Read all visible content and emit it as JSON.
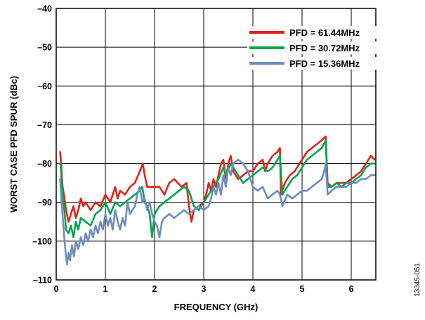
{
  "chart_data": {
    "type": "line",
    "title": "",
    "xlabel": "FREQUENCY (GHz)",
    "ylabel": "WORST CASE PFD SPUR (dBc)",
    "xlim": [
      0,
      6.5
    ],
    "ylim": [
      -110,
      -40
    ],
    "x_ticks": [
      "0",
      "1",
      "2",
      "3",
      "4",
      "5",
      "6"
    ],
    "x_tick_values": [
      0,
      1,
      2,
      3,
      4,
      5,
      6
    ],
    "y_ticks": [
      "–40",
      "–50",
      "–60",
      "–70",
      "–80",
      "–90",
      "–100",
      "–110"
    ],
    "y_tick_values": [
      -40,
      -50,
      -60,
      -70,
      -80,
      -90,
      -100,
      -110
    ],
    "grid": true,
    "legend_position": "top-right",
    "figure_id": "13345-051",
    "series": [
      {
        "name": "PFD = 61.44MHz",
        "color": "#e2231a",
        "points": [
          [
            0.08,
            -77
          ],
          [
            0.1,
            -80
          ],
          [
            0.13,
            -86
          ],
          [
            0.17,
            -89
          ],
          [
            0.2,
            -92
          ],
          [
            0.25,
            -95
          ],
          [
            0.3,
            -93
          ],
          [
            0.35,
            -91
          ],
          [
            0.4,
            -94
          ],
          [
            0.45,
            -92
          ],
          [
            0.5,
            -89
          ],
          [
            0.55,
            -91
          ],
          [
            0.6,
            -90
          ],
          [
            0.7,
            -92
          ],
          [
            0.8,
            -90
          ],
          [
            0.9,
            -91
          ],
          [
            1.0,
            -88
          ],
          [
            1.1,
            -90
          ],
          [
            1.15,
            -88
          ],
          [
            1.2,
            -86
          ],
          [
            1.25,
            -89
          ],
          [
            1.3,
            -87
          ],
          [
            1.4,
            -88
          ],
          [
            1.5,
            -86
          ],
          [
            1.6,
            -85
          ],
          [
            1.7,
            -82
          ],
          [
            1.76,
            -80
          ],
          [
            1.8,
            -83
          ],
          [
            1.85,
            -86
          ],
          [
            1.95,
            -86
          ],
          [
            2.1,
            -86
          ],
          [
            2.2,
            -88
          ],
          [
            2.3,
            -85
          ],
          [
            2.4,
            -84
          ],
          [
            2.55,
            -86
          ],
          [
            2.65,
            -85
          ],
          [
            2.7,
            -91
          ],
          [
            2.75,
            -95
          ],
          [
            2.8,
            -92
          ],
          [
            2.9,
            -91
          ],
          [
            3.0,
            -90
          ],
          [
            3.05,
            -88
          ],
          [
            3.1,
            -85
          ],
          [
            3.15,
            -87
          ],
          [
            3.2,
            -84
          ],
          [
            3.25,
            -86
          ],
          [
            3.35,
            -80
          ],
          [
            3.4,
            -79
          ],
          [
            3.45,
            -84
          ],
          [
            3.5,
            -80
          ],
          [
            3.55,
            -78
          ],
          [
            3.6,
            -82
          ],
          [
            3.7,
            -84
          ],
          [
            3.8,
            -83
          ],
          [
            3.9,
            -82
          ],
          [
            4.0,
            -82
          ],
          [
            4.1,
            -80
          ],
          [
            4.2,
            -79
          ],
          [
            4.25,
            -82
          ],
          [
            4.3,
            -80
          ],
          [
            4.4,
            -78
          ],
          [
            4.5,
            -77
          ],
          [
            4.55,
            -76
          ],
          [
            4.57,
            -88
          ],
          [
            4.65,
            -85
          ],
          [
            4.75,
            -83
          ],
          [
            4.85,
            -82
          ],
          [
            5.0,
            -79
          ],
          [
            5.1,
            -77
          ],
          [
            5.2,
            -76
          ],
          [
            5.3,
            -75
          ],
          [
            5.4,
            -74
          ],
          [
            5.48,
            -73
          ],
          [
            5.52,
            -85
          ],
          [
            5.6,
            -86
          ],
          [
            5.7,
            -85
          ],
          [
            5.8,
            -85
          ],
          [
            5.9,
            -85
          ],
          [
            6.0,
            -84
          ],
          [
            6.1,
            -83
          ],
          [
            6.2,
            -82
          ],
          [
            6.3,
            -80
          ],
          [
            6.4,
            -78
          ],
          [
            6.48,
            -79
          ]
        ]
      },
      {
        "name": "PFD = 30.72MHz",
        "color": "#00a550",
        "points": [
          [
            0.09,
            -80
          ],
          [
            0.12,
            -86
          ],
          [
            0.15,
            -90
          ],
          [
            0.18,
            -94
          ],
          [
            0.2,
            -97
          ],
          [
            0.25,
            -98
          ],
          [
            0.3,
            -96
          ],
          [
            0.35,
            -99
          ],
          [
            0.4,
            -95
          ],
          [
            0.45,
            -97
          ],
          [
            0.5,
            -94
          ],
          [
            0.6,
            -95
          ],
          [
            0.7,
            -96
          ],
          [
            0.8,
            -93
          ],
          [
            0.9,
            -92
          ],
          [
            1.0,
            -90
          ],
          [
            1.1,
            -93
          ],
          [
            1.2,
            -90
          ],
          [
            1.3,
            -91
          ],
          [
            1.4,
            -90
          ],
          [
            1.5,
            -89
          ],
          [
            1.6,
            -88
          ],
          [
            1.7,
            -87
          ],
          [
            1.75,
            -86
          ],
          [
            1.8,
            -90
          ],
          [
            1.85,
            -91
          ],
          [
            1.9,
            -93
          ],
          [
            1.95,
            -99
          ],
          [
            2.0,
            -93
          ],
          [
            2.1,
            -91
          ],
          [
            2.2,
            -90
          ],
          [
            2.3,
            -89
          ],
          [
            2.4,
            -88
          ],
          [
            2.5,
            -87
          ],
          [
            2.6,
            -86
          ],
          [
            2.7,
            -87
          ],
          [
            2.8,
            -91
          ],
          [
            2.9,
            -92
          ],
          [
            3.0,
            -90
          ],
          [
            3.1,
            -88
          ],
          [
            3.2,
            -86
          ],
          [
            3.3,
            -84
          ],
          [
            3.4,
            -81
          ],
          [
            3.45,
            -83
          ],
          [
            3.55,
            -80
          ],
          [
            3.6,
            -81
          ],
          [
            3.7,
            -83
          ],
          [
            3.8,
            -85
          ],
          [
            3.9,
            -84
          ],
          [
            4.0,
            -83
          ],
          [
            4.1,
            -82
          ],
          [
            4.2,
            -81
          ],
          [
            4.3,
            -82
          ],
          [
            4.4,
            -81
          ],
          [
            4.5,
            -79
          ],
          [
            4.55,
            -78
          ],
          [
            4.6,
            -88
          ],
          [
            4.7,
            -86
          ],
          [
            4.8,
            -84
          ],
          [
            4.9,
            -83
          ],
          [
            5.0,
            -81
          ],
          [
            5.1,
            -79
          ],
          [
            5.2,
            -78
          ],
          [
            5.3,
            -77
          ],
          [
            5.4,
            -76
          ],
          [
            5.48,
            -74
          ],
          [
            5.52,
            -86
          ],
          [
            5.6,
            -86
          ],
          [
            5.7,
            -85
          ],
          [
            5.8,
            -86
          ],
          [
            5.9,
            -85
          ],
          [
            6.0,
            -85
          ],
          [
            6.1,
            -84
          ],
          [
            6.2,
            -83
          ],
          [
            6.3,
            -81
          ],
          [
            6.4,
            -80
          ],
          [
            6.48,
            -80
          ]
        ]
      },
      {
        "name": "PFD = 15.36MHz",
        "color": "#6e8cbf",
        "points": [
          [
            0.08,
            -84
          ],
          [
            0.11,
            -90
          ],
          [
            0.14,
            -95
          ],
          [
            0.17,
            -100
          ],
          [
            0.2,
            -104
          ],
          [
            0.22,
            -106
          ],
          [
            0.25,
            -103
          ],
          [
            0.28,
            -105
          ],
          [
            0.32,
            -101
          ],
          [
            0.36,
            -104
          ],
          [
            0.4,
            -100
          ],
          [
            0.45,
            -102
          ],
          [
            0.5,
            -99
          ],
          [
            0.55,
            -101
          ],
          [
            0.6,
            -98
          ],
          [
            0.65,
            -100
          ],
          [
            0.7,
            -97
          ],
          [
            0.75,
            -99
          ],
          [
            0.8,
            -96
          ],
          [
            0.85,
            -98
          ],
          [
            0.9,
            -95
          ],
          [
            0.95,
            -97
          ],
          [
            1.0,
            -93
          ],
          [
            1.05,
            -96
          ],
          [
            1.1,
            -94
          ],
          [
            1.15,
            -97
          ],
          [
            1.2,
            -92
          ],
          [
            1.25,
            -95
          ],
          [
            1.3,
            -97
          ],
          [
            1.35,
            -94
          ],
          [
            1.4,
            -96
          ],
          [
            1.45,
            -90
          ],
          [
            1.5,
            -93
          ],
          [
            1.55,
            -92
          ],
          [
            1.6,
            -91
          ],
          [
            1.65,
            -88
          ],
          [
            1.7,
            -86
          ],
          [
            1.75,
            -90
          ],
          [
            1.8,
            -89
          ],
          [
            1.85,
            -92
          ],
          [
            1.9,
            -90
          ],
          [
            1.95,
            -93
          ],
          [
            2.0,
            -95
          ],
          [
            2.05,
            -96
          ],
          [
            2.1,
            -99
          ],
          [
            2.15,
            -95
          ],
          [
            2.2,
            -94
          ],
          [
            2.3,
            -93
          ],
          [
            2.4,
            -94
          ],
          [
            2.5,
            -93
          ],
          [
            2.6,
            -92
          ],
          [
            2.7,
            -93
          ],
          [
            2.8,
            -92
          ],
          [
            2.9,
            -91
          ],
          [
            3.0,
            -92
          ],
          [
            3.1,
            -91
          ],
          [
            3.15,
            -89
          ],
          [
            3.2,
            -86
          ],
          [
            3.25,
            -88
          ],
          [
            3.3,
            -85
          ],
          [
            3.35,
            -88
          ],
          [
            3.4,
            -83
          ],
          [
            3.45,
            -86
          ],
          [
            3.5,
            -81
          ],
          [
            3.55,
            -83
          ],
          [
            3.6,
            -80
          ],
          [
            3.7,
            -79
          ],
          [
            3.8,
            -80
          ],
          [
            3.9,
            -82
          ],
          [
            4.0,
            -86
          ],
          [
            4.1,
            -87
          ],
          [
            4.2,
            -86
          ],
          [
            4.3,
            -89
          ],
          [
            4.4,
            -88
          ],
          [
            4.5,
            -87
          ],
          [
            4.55,
            -88
          ],
          [
            4.6,
            -91
          ],
          [
            4.7,
            -88
          ],
          [
            4.8,
            -89
          ],
          [
            4.9,
            -88
          ],
          [
            5.0,
            -87
          ],
          [
            5.1,
            -87
          ],
          [
            5.2,
            -86
          ],
          [
            5.3,
            -85
          ],
          [
            5.4,
            -84
          ],
          [
            5.45,
            -82
          ],
          [
            5.48,
            -80
          ],
          [
            5.52,
            -88
          ],
          [
            5.6,
            -87
          ],
          [
            5.7,
            -86
          ],
          [
            5.8,
            -86
          ],
          [
            5.9,
            -86
          ],
          [
            6.0,
            -85
          ],
          [
            6.1,
            -85
          ],
          [
            6.2,
            -84
          ],
          [
            6.3,
            -84
          ],
          [
            6.4,
            -83
          ],
          [
            6.48,
            -83
          ]
        ]
      }
    ]
  }
}
